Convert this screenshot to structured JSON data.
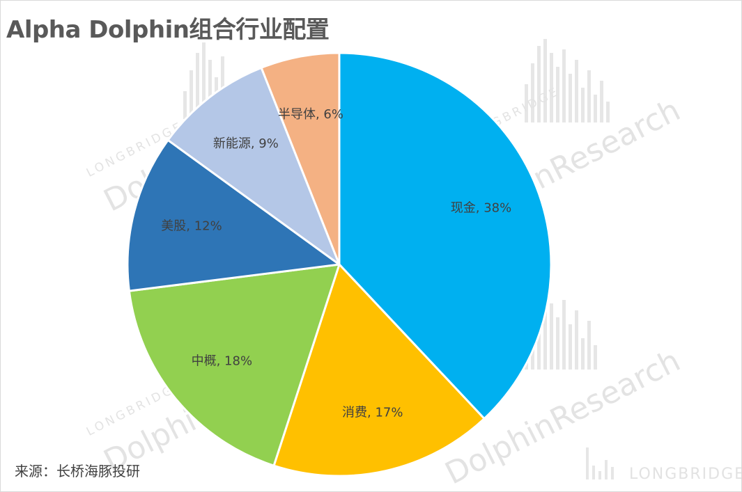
{
  "title": "Alpha Dolphin组合行业配置",
  "source": "来源：长桥海豚投研",
  "watermarks": {
    "small": "LONGBRIDGE",
    "big": "Dolphin",
    "big_right": "DolphinResearch",
    "brand": "LONGBRIDGE"
  },
  "chart_data": {
    "type": "pie",
    "title": "Alpha Dolphin组合行业配置",
    "start_angle_deg": 0,
    "direction": "clockwise",
    "slices": [
      {
        "label": "现金",
        "value": 38,
        "display": "现金, 38%",
        "color": "#00B0F0"
      },
      {
        "label": "消费",
        "value": 17,
        "display": "消费, 17%",
        "color": "#FFC000"
      },
      {
        "label": "中概",
        "value": 18,
        "display": "中概, 18%",
        "color": "#92D050"
      },
      {
        "label": "美股",
        "value": 12,
        "display": "美股, 12%",
        "color": "#2E75B6"
      },
      {
        "label": "新能源",
        "value": 9,
        "display": "新能源, 9%",
        "color": "#B4C7E7"
      },
      {
        "label": "半导体",
        "value": 6,
        "display": "半导体, 6%",
        "color": "#F4B183"
      }
    ]
  }
}
